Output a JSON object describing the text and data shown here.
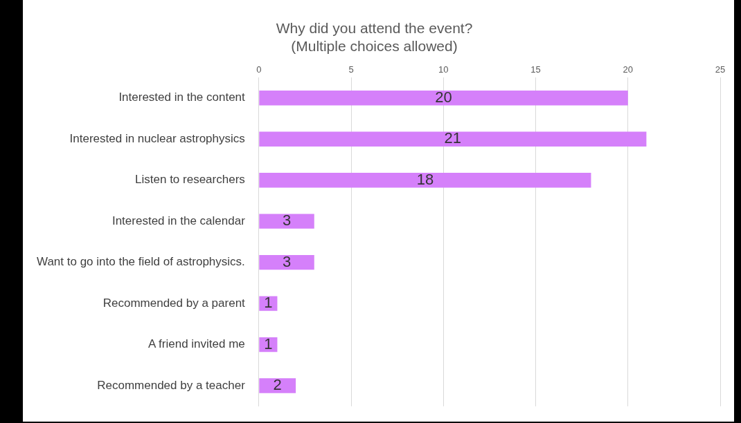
{
  "chart_data": {
    "type": "bar",
    "orientation": "horizontal",
    "title": "Why did you attend the event?",
    "subtitle": "(Multiple choices allowed)",
    "categories": [
      "Interested in the content",
      "Interested in nuclear astrophysics",
      "Listen to researchers",
      "Interested in the calendar",
      "Want to go into the field of astrophysics.",
      "Recommended by a parent",
      "A friend invited me",
      "Recommended by a teacher"
    ],
    "values": [
      20,
      21,
      18,
      3,
      3,
      1,
      1,
      2
    ],
    "color": "#d580fa",
    "xlim": [
      0,
      25
    ],
    "xticks": [
      0,
      5,
      10,
      15,
      20,
      25
    ],
    "grid": "x",
    "data_labels": true,
    "legend": false
  }
}
